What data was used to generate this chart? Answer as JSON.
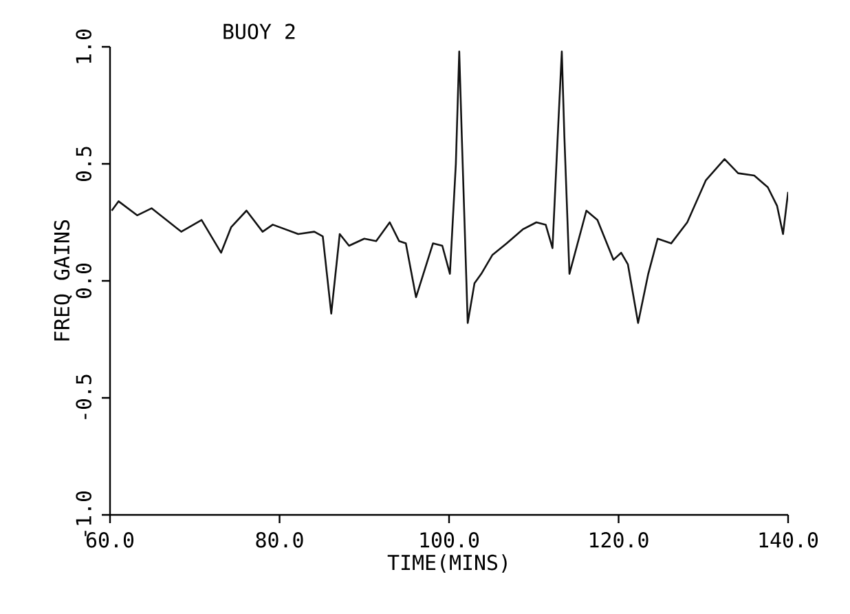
{
  "chart_data": {
    "type": "line",
    "title": "BUOY 2",
    "xlabel": "TIME(MINS)",
    "ylabel": "FREQ GAINS",
    "xlim": [
      60,
      140
    ],
    "ylim": [
      -1,
      1
    ],
    "xticks": [
      {
        "value": 60,
        "label": "60.0"
      },
      {
        "value": 80,
        "label": "80.0"
      },
      {
        "value": 100,
        "label": "100.0"
      },
      {
        "value": 120,
        "label": "120.0"
      },
      {
        "value": 140,
        "label": "140.0"
      }
    ],
    "yticks": [
      {
        "value": -1,
        "label": "-1.0"
      },
      {
        "value": -0.5,
        "label": "-0.5"
      },
      {
        "value": 0,
        "label": "0.0"
      },
      {
        "value": 0.5,
        "label": "0.5"
      },
      {
        "value": 1,
        "label": "1.0"
      }
    ],
    "grid": false,
    "marker": "none",
    "line_style": "solid",
    "series": [
      {
        "color": "#111111",
        "x": [
          60.2,
          61,
          63.2,
          64.9,
          68.4,
          70.8,
          73.1,
          74.3,
          76.1,
          78.0,
          79.2,
          82.2,
          84.1,
          85.1,
          86.1,
          87.1,
          88.2,
          90.0,
          91.4,
          93.0,
          94.1,
          94.9,
          96.1,
          98.1,
          99.2,
          100.1,
          100.8,
          101.2,
          101.5,
          102.2,
          103.0,
          103.8,
          105.1,
          106.8,
          108.7,
          110.3,
          111.4,
          112.2,
          112.9,
          113.3,
          113.6,
          114.2,
          116.2,
          117.5,
          119.4,
          120.3,
          121.1,
          122.3,
          123.5,
          124.6,
          126.2,
          128.1,
          130.3,
          132.5,
          134.1,
          136.0,
          137.6,
          138.7,
          139.4,
          140.0
        ],
        "values": [
          0.3,
          0.34,
          0.28,
          0.31,
          0.21,
          0.26,
          0.12,
          0.23,
          0.3,
          0.21,
          0.24,
          0.2,
          0.21,
          0.19,
          -0.14,
          0.2,
          0.15,
          0.18,
          0.17,
          0.25,
          0.17,
          0.16,
          -0.07,
          0.16,
          0.15,
          0.03,
          0.5,
          0.98,
          0.62,
          -0.18,
          -0.01,
          0.03,
          0.11,
          0.16,
          0.22,
          0.25,
          0.24,
          0.14,
          0.68,
          0.98,
          0.62,
          0.03,
          0.3,
          0.26,
          0.09,
          0.12,
          0.07,
          -0.18,
          0.03,
          0.18,
          0.16,
          0.25,
          0.43,
          0.52,
          0.46,
          0.45,
          0.4,
          0.32,
          0.2,
          0.38
        ]
      }
    ]
  }
}
